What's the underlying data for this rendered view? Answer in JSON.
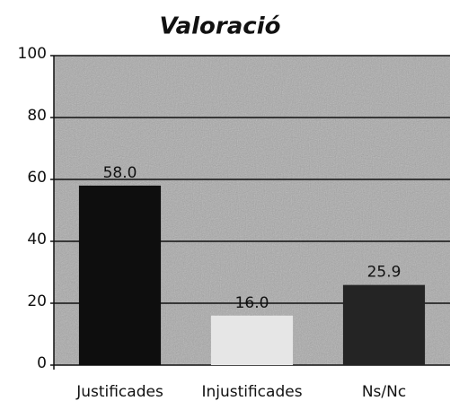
{
  "chart_data": {
    "type": "bar",
    "title": "Valoració",
    "categories": [
      "Justificades",
      "Injustificades",
      "Ns/Nc"
    ],
    "values": [
      58,
      16,
      25.9
    ],
    "value_labels": [
      "58.0",
      "16.0",
      "25.9"
    ],
    "colors": [
      "#0e0e0e",
      "#e6e6e6",
      "#242424"
    ],
    "ylim": [
      0,
      100
    ],
    "yticks": [
      0,
      20,
      40,
      60,
      80,
      100
    ],
    "grid": true
  }
}
